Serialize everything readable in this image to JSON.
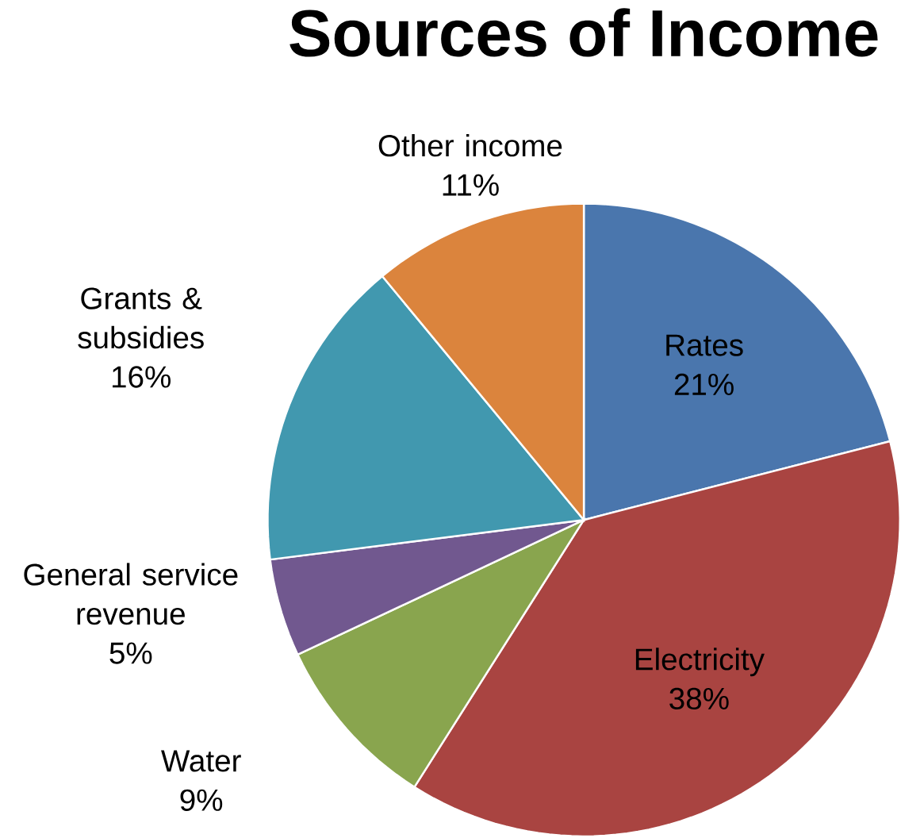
{
  "chart_data": {
    "type": "pie",
    "title": "Sources of Income",
    "categories": [
      "Rates",
      "Electricity",
      "Water",
      "General service revenue",
      "Grants & subsidies",
      "Other income"
    ],
    "values": [
      21,
      38,
      9,
      5,
      16,
      11
    ],
    "value_labels": [
      "21%",
      "38%",
      "9%",
      "5%",
      "16%",
      "11%"
    ],
    "colors": [
      "#4a76ad",
      "#a94441",
      "#89a54e",
      "#71588f",
      "#4198af",
      "#db843d"
    ]
  }
}
